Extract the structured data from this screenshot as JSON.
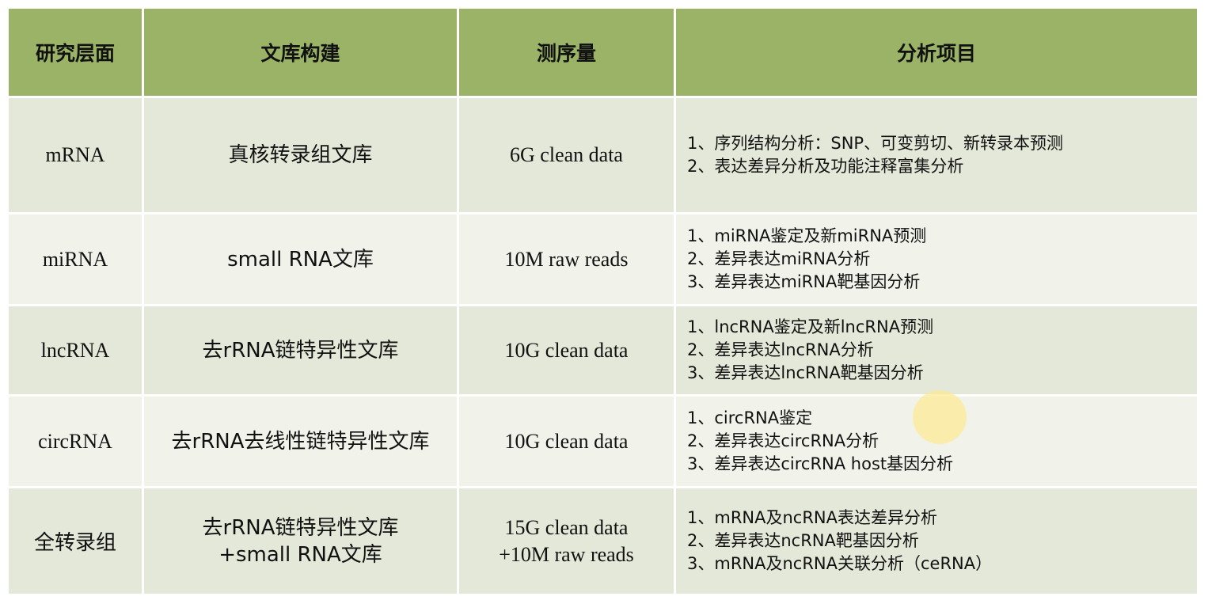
{
  "headers": [
    "研究层面",
    "文库构建",
    "测序量",
    "分析项目"
  ],
  "rows": [
    {
      "layer": "mRNA",
      "library": [
        "真核转录组文库"
      ],
      "sequencing": [
        "6G clean data"
      ],
      "analysis": [
        "1、序列结构分析：SNP、可变剪切、新转录本预测",
        "2、表达差异分析及功能注释富集分析"
      ]
    },
    {
      "layer": "miRNA",
      "library": [
        "small RNA文库"
      ],
      "sequencing": [
        "10M raw reads"
      ],
      "analysis": [
        "1、miRNA鉴定及新miRNA预测",
        "2、差异表达miRNA分析",
        "3、差异表达miRNA靶基因分析"
      ]
    },
    {
      "layer": "lncRNA",
      "library": [
        "去rRNA链特异性文库"
      ],
      "sequencing": [
        "10G clean data"
      ],
      "analysis": [
        "1、lncRNA鉴定及新lncRNA预测",
        "2、差异表达lncRNA分析",
        "3、差异表达lncRNA靶基因分析"
      ]
    },
    {
      "layer": "circRNA",
      "library": [
        "去rRNA去线性链特异性文库"
      ],
      "sequencing": [
        "10G clean data"
      ],
      "analysis": [
        "1、circRNA鉴定",
        "2、差异表达circRNA分析",
        "3、差异表达circRNA host基因分析"
      ]
    },
    {
      "layer": "全转录组",
      "library": [
        "去rRNA链特异性文库",
        "+small RNA文库"
      ],
      "sequencing": [
        "15G clean data",
        "+10M raw reads"
      ],
      "analysis": [
        "1、mRNA及ncRNA表达差异分析",
        "2、差异表达ncRNA靶基因分析",
        "3、mRNA及ncRNA关联分析（ceRNA）"
      ]
    }
  ],
  "colors": {
    "header_bg": "#9bb367",
    "row_odd_bg": "#e4e8d9",
    "row_even_bg": "#f1f3eb",
    "pointer": "#fcea96"
  }
}
